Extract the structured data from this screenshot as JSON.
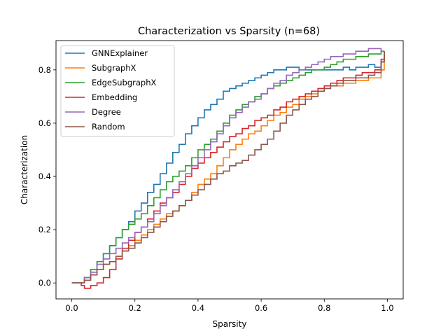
{
  "chart_data": {
    "type": "line",
    "title": "Characterization vs Sparsity (n=68)",
    "xlabel": "Sparsity",
    "ylabel": "Characterization",
    "xlim": [
      -0.05,
      1.05
    ],
    "ylim": [
      -0.06,
      0.91
    ],
    "xticks": [
      0.0,
      0.2,
      0.4,
      0.6,
      0.8,
      1.0
    ],
    "xtick_labels": [
      "0.0",
      "0.2",
      "0.4",
      "0.6",
      "0.8",
      "1.0"
    ],
    "yticks": [
      0.0,
      0.2,
      0.4,
      0.6,
      0.8
    ],
    "ytick_labels": [
      "0.0",
      "0.2",
      "0.4",
      "0.6",
      "0.8"
    ],
    "grid": false,
    "legend_position": "top-left",
    "series": [
      {
        "name": "GNNExplainer",
        "color": "#1f77b4",
        "x": [
          0.0,
          0.02,
          0.04,
          0.06,
          0.08,
          0.1,
          0.12,
          0.14,
          0.16,
          0.18,
          0.2,
          0.22,
          0.24,
          0.26,
          0.28,
          0.3,
          0.32,
          0.34,
          0.36,
          0.38,
          0.4,
          0.42,
          0.44,
          0.46,
          0.48,
          0.5,
          0.52,
          0.54,
          0.56,
          0.58,
          0.6,
          0.62,
          0.64,
          0.66,
          0.68,
          0.7,
          0.72,
          0.74,
          0.76,
          0.78,
          0.8,
          0.82,
          0.84,
          0.86,
          0.88,
          0.9,
          0.92,
          0.94,
          0.96,
          0.98,
          0.99
        ],
        "y": [
          0.0,
          0.0,
          0.02,
          0.05,
          0.08,
          0.11,
          0.14,
          0.17,
          0.2,
          0.23,
          0.27,
          0.3,
          0.34,
          0.37,
          0.41,
          0.45,
          0.49,
          0.52,
          0.56,
          0.59,
          0.62,
          0.65,
          0.67,
          0.69,
          0.72,
          0.73,
          0.74,
          0.75,
          0.76,
          0.77,
          0.78,
          0.79,
          0.8,
          0.8,
          0.81,
          0.81,
          0.8,
          0.8,
          0.8,
          0.8,
          0.8,
          0.8,
          0.8,
          0.81,
          0.8,
          0.81,
          0.81,
          0.82,
          0.81,
          0.83,
          0.87
        ]
      },
      {
        "name": "SubgraphX",
        "color": "#ff7f0e",
        "x": [
          0.0,
          0.02,
          0.04,
          0.06,
          0.08,
          0.1,
          0.12,
          0.14,
          0.16,
          0.18,
          0.2,
          0.22,
          0.24,
          0.26,
          0.28,
          0.3,
          0.32,
          0.34,
          0.36,
          0.38,
          0.4,
          0.42,
          0.44,
          0.46,
          0.48,
          0.5,
          0.52,
          0.54,
          0.56,
          0.58,
          0.6,
          0.62,
          0.64,
          0.66,
          0.68,
          0.7,
          0.72,
          0.74,
          0.76,
          0.78,
          0.8,
          0.82,
          0.84,
          0.86,
          0.88,
          0.9,
          0.92,
          0.94,
          0.96,
          0.98,
          0.99
        ],
        "y": [
          0.0,
          0.0,
          0.01,
          0.03,
          0.05,
          0.07,
          0.08,
          0.1,
          0.12,
          0.14,
          0.16,
          0.18,
          0.2,
          0.22,
          0.24,
          0.26,
          0.27,
          0.29,
          0.31,
          0.34,
          0.37,
          0.39,
          0.41,
          0.44,
          0.47,
          0.5,
          0.52,
          0.54,
          0.56,
          0.57,
          0.59,
          0.61,
          0.63,
          0.64,
          0.66,
          0.67,
          0.69,
          0.7,
          0.71,
          0.72,
          0.73,
          0.74,
          0.74,
          0.75,
          0.75,
          0.76,
          0.76,
          0.77,
          0.77,
          0.8,
          0.87
        ]
      },
      {
        "name": "EdgeSubgraphX",
        "color": "#2ca02c",
        "x": [
          0.0,
          0.02,
          0.04,
          0.06,
          0.08,
          0.1,
          0.12,
          0.14,
          0.16,
          0.18,
          0.2,
          0.22,
          0.24,
          0.26,
          0.28,
          0.3,
          0.32,
          0.34,
          0.36,
          0.38,
          0.4,
          0.42,
          0.44,
          0.46,
          0.48,
          0.5,
          0.52,
          0.54,
          0.56,
          0.58,
          0.6,
          0.62,
          0.64,
          0.66,
          0.68,
          0.7,
          0.72,
          0.74,
          0.76,
          0.78,
          0.8,
          0.82,
          0.84,
          0.86,
          0.88,
          0.9,
          0.92,
          0.94,
          0.96,
          0.98,
          0.99
        ],
        "y": [
          0.0,
          0.0,
          0.02,
          0.05,
          0.08,
          0.11,
          0.14,
          0.17,
          0.2,
          0.22,
          0.24,
          0.26,
          0.29,
          0.32,
          0.35,
          0.38,
          0.4,
          0.42,
          0.44,
          0.47,
          0.5,
          0.52,
          0.54,
          0.57,
          0.6,
          0.63,
          0.65,
          0.67,
          0.68,
          0.7,
          0.71,
          0.73,
          0.74,
          0.75,
          0.76,
          0.77,
          0.78,
          0.79,
          0.8,
          0.8,
          0.81,
          0.82,
          0.83,
          0.84,
          0.84,
          0.85,
          0.85,
          0.86,
          0.86,
          0.87,
          0.87
        ]
      },
      {
        "name": "Embedding",
        "color": "#d62728",
        "x": [
          0.0,
          0.02,
          0.03,
          0.04,
          0.06,
          0.08,
          0.1,
          0.12,
          0.14,
          0.16,
          0.18,
          0.2,
          0.22,
          0.24,
          0.26,
          0.28,
          0.3,
          0.32,
          0.34,
          0.36,
          0.38,
          0.4,
          0.42,
          0.44,
          0.46,
          0.48,
          0.5,
          0.52,
          0.54,
          0.56,
          0.58,
          0.6,
          0.62,
          0.64,
          0.66,
          0.68,
          0.7,
          0.72,
          0.74,
          0.76,
          0.78,
          0.8,
          0.82,
          0.84,
          0.86,
          0.88,
          0.9,
          0.92,
          0.94,
          0.96,
          0.98,
          0.99
        ],
        "y": [
          0.0,
          0.0,
          -0.01,
          -0.02,
          -0.01,
          0.0,
          0.02,
          0.05,
          0.09,
          0.13,
          0.16,
          0.19,
          0.21,
          0.24,
          0.27,
          0.3,
          0.32,
          0.34,
          0.37,
          0.4,
          0.43,
          0.45,
          0.47,
          0.49,
          0.51,
          0.53,
          0.55,
          0.56,
          0.58,
          0.59,
          0.61,
          0.62,
          0.63,
          0.65,
          0.66,
          0.68,
          0.69,
          0.7,
          0.71,
          0.72,
          0.73,
          0.74,
          0.75,
          0.76,
          0.77,
          0.77,
          0.78,
          0.79,
          0.79,
          0.8,
          0.84,
          0.87
        ]
      },
      {
        "name": "Degree",
        "color": "#9467bd",
        "x": [
          0.0,
          0.02,
          0.04,
          0.06,
          0.08,
          0.1,
          0.12,
          0.14,
          0.16,
          0.18,
          0.2,
          0.22,
          0.24,
          0.26,
          0.28,
          0.3,
          0.32,
          0.34,
          0.36,
          0.38,
          0.4,
          0.42,
          0.44,
          0.46,
          0.48,
          0.5,
          0.52,
          0.54,
          0.56,
          0.58,
          0.6,
          0.62,
          0.64,
          0.66,
          0.68,
          0.7,
          0.72,
          0.74,
          0.76,
          0.78,
          0.8,
          0.82,
          0.84,
          0.86,
          0.88,
          0.9,
          0.92,
          0.94,
          0.96,
          0.98,
          0.99
        ],
        "y": [
          0.0,
          0.0,
          0.02,
          0.04,
          0.07,
          0.09,
          0.11,
          0.13,
          0.15,
          0.17,
          0.19,
          0.21,
          0.23,
          0.26,
          0.29,
          0.32,
          0.35,
          0.38,
          0.41,
          0.44,
          0.47,
          0.5,
          0.53,
          0.56,
          0.59,
          0.62,
          0.64,
          0.66,
          0.68,
          0.69,
          0.71,
          0.73,
          0.75,
          0.76,
          0.78,
          0.79,
          0.8,
          0.81,
          0.82,
          0.83,
          0.84,
          0.85,
          0.85,
          0.86,
          0.86,
          0.87,
          0.87,
          0.88,
          0.88,
          0.87,
          0.87
        ]
      },
      {
        "name": "Random",
        "color": "#8c564b",
        "x": [
          0.0,
          0.02,
          0.04,
          0.06,
          0.08,
          0.1,
          0.12,
          0.14,
          0.16,
          0.18,
          0.2,
          0.22,
          0.24,
          0.26,
          0.28,
          0.3,
          0.32,
          0.34,
          0.36,
          0.38,
          0.4,
          0.42,
          0.44,
          0.46,
          0.48,
          0.5,
          0.52,
          0.54,
          0.56,
          0.58,
          0.6,
          0.62,
          0.64,
          0.66,
          0.68,
          0.7,
          0.72,
          0.74,
          0.76,
          0.78,
          0.8,
          0.82,
          0.84,
          0.86,
          0.88,
          0.9,
          0.92,
          0.94,
          0.96,
          0.98,
          0.99
        ],
        "y": [
          0.0,
          0.0,
          0.01,
          0.03,
          0.05,
          0.07,
          0.08,
          0.1,
          0.12,
          0.13,
          0.15,
          0.17,
          0.19,
          0.21,
          0.23,
          0.25,
          0.27,
          0.29,
          0.31,
          0.33,
          0.35,
          0.37,
          0.39,
          0.41,
          0.42,
          0.44,
          0.45,
          0.46,
          0.48,
          0.5,
          0.52,
          0.54,
          0.57,
          0.6,
          0.63,
          0.65,
          0.67,
          0.69,
          0.7,
          0.72,
          0.73,
          0.74,
          0.75,
          0.76,
          0.76,
          0.77,
          0.77,
          0.78,
          0.79,
          0.83,
          0.87
        ]
      }
    ]
  }
}
